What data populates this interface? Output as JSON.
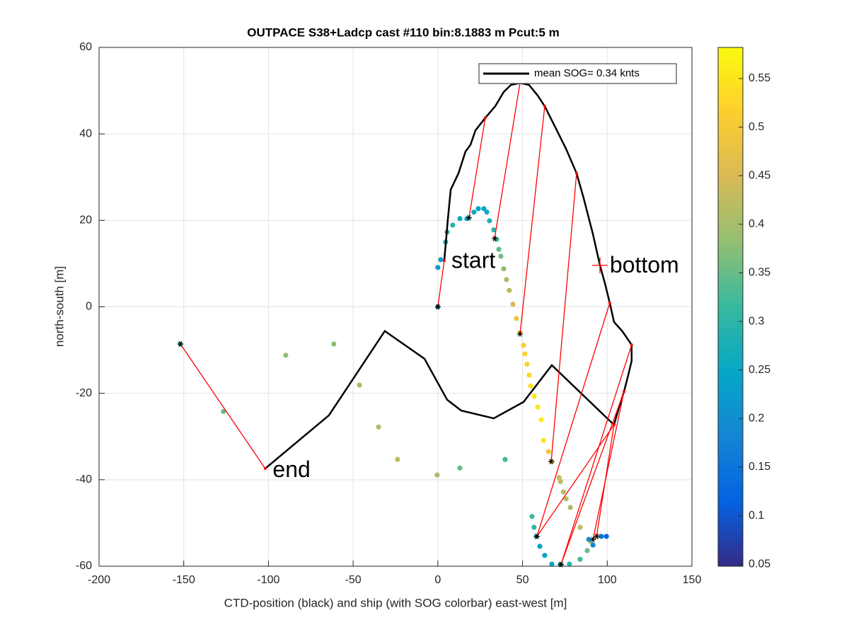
{
  "chart_data": {
    "type": "scatter",
    "title": "OUTPACE S38+Ladcp cast #110 bin:8.1883 m  Pcut:5 m",
    "xlabel": "CTD-position (black) and ship (with SOG colorbar) east-west [m]",
    "ylabel": "north-south [m]",
    "xlim": [
      -200,
      150
    ],
    "ylim": [
      -60,
      60
    ],
    "xticks": [
      -200,
      -150,
      -100,
      -50,
      0,
      50,
      100,
      150
    ],
    "yticks": [
      -60,
      -40,
      -20,
      0,
      20,
      40,
      60
    ],
    "grid": true,
    "legend_position": "northeast",
    "colormap": "parula",
    "clim": [
      0.048,
      0.582
    ],
    "cticks": [
      0.05,
      0.1,
      0.15,
      0.2,
      0.25,
      0.3,
      0.35,
      0.4,
      0.45,
      0.5,
      0.55
    ],
    "series": [
      {
        "name": "mean SOG=  0.34 knts",
        "color": "#000000",
        "x": [
          3.8,
          5.9,
          7.6,
          12.2,
          16.3,
          19.3,
          22.2,
          28.0,
          33.9,
          38.9,
          43.1,
          48.5,
          53.9,
          58.9,
          63.1,
          69.4,
          75.6,
          81.9,
          86.1,
          91.5,
          95.7,
          98.6,
          101.5,
          104.0,
          109.0,
          114.4,
          114.4,
          112.4,
          109.9,
          107.0,
          104.0,
          67.3,
          50.6,
          33.0,
          13.8,
          5.5,
          -7.9,
          -31.3,
          -64.3,
          -101.9
        ],
        "values": [
          10.7,
          20.2,
          27.1,
          30.9,
          35.9,
          37.5,
          40.8,
          43.7,
          46.4,
          49.7,
          51.3,
          51.8,
          51.3,
          48.9,
          46.4,
          41.5,
          36.6,
          30.9,
          25.1,
          16.9,
          9.6,
          5.5,
          0.9,
          -3.5,
          -5.7,
          -8.8,
          -12.5,
          -15.8,
          -19.6,
          -23.2,
          -27.3,
          -13.5,
          -22.0,
          -25.8,
          -24.0,
          -21.5,
          -12.0,
          -5.6,
          -25.1,
          -37.4
        ]
      }
    ],
    "ship": {
      "x": [
        0,
        0.0,
        1.7,
        4.6,
        5.5,
        8.8,
        13.0,
        17.2,
        21.3,
        23.9,
        27.2,
        28.9,
        30.5,
        33.0,
        34.7,
        36.0,
        37.2,
        38.9,
        40.5,
        42.2,
        44.3,
        46.4,
        48.5,
        50.6,
        51.4,
        52.7,
        53.9,
        54.8,
        56.9,
        59.0,
        61.1,
        62.4,
        65.3,
        67.4,
        71.6,
        72.4,
        74.1,
        75.7,
        78.2,
        55.6,
        56.8,
        58.1,
        60.2,
        63.1,
        67.3,
        72.3,
        77.7,
        84.0,
        88.2,
        90.3,
        94.5,
        84.0,
        89.1,
        91.6,
        96.5,
        99.5,
        -152.0,
        -126.5,
        -89.8,
        -61.4,
        -46.3,
        -35.0,
        -23.8,
        -0.4,
        13.0,
        39.7
      ],
      "y": [
        0,
        9.1,
        10.9,
        15.0,
        17.3,
        18.9,
        20.4,
        20.4,
        21.9,
        22.7,
        22.7,
        21.9,
        19.9,
        17.8,
        15.6,
        13.3,
        11.7,
        8.8,
        6.3,
        3.8,
        0.6,
        -2.7,
        -6.0,
        -8.9,
        -10.9,
        -13.3,
        -15.8,
        -18.3,
        -20.7,
        -23.2,
        -26.1,
        -30.9,
        -33.5,
        -35.8,
        -39.5,
        -40.4,
        -42.8,
        -44.4,
        -46.4,
        -48.5,
        -51.0,
        -53.1,
        -55.4,
        -57.5,
        -59.5,
        -59.6,
        -59.5,
        -58.4,
        -56.4,
        -54.3,
        -53.1,
        -51.0,
        -53.8,
        -55.1,
        -53.1,
        -53.1,
        -8.6,
        -24.2,
        -11.2,
        -8.6,
        -18.1,
        -27.8,
        -35.3,
        -38.9,
        -37.3,
        -35.3
      ],
      "sog": [
        0.25,
        0.22,
        0.22,
        0.28,
        0.3,
        0.3,
        0.26,
        0.25,
        0.26,
        0.25,
        0.25,
        0.26,
        0.28,
        0.3,
        0.32,
        0.34,
        0.36,
        0.38,
        0.4,
        0.42,
        0.45,
        0.48,
        0.5,
        0.51,
        0.52,
        0.52,
        0.53,
        0.54,
        0.55,
        0.55,
        0.56,
        0.55,
        0.5,
        0.47,
        0.44,
        0.42,
        0.42,
        0.41,
        0.4,
        0.32,
        0.3,
        0.28,
        0.25,
        0.25,
        0.25,
        0.27,
        0.3,
        0.32,
        0.35,
        0.4,
        0.42,
        0.42,
        0.2,
        0.18,
        0.15,
        0.12,
        0.3,
        0.35,
        0.38,
        0.38,
        0.4,
        0.42,
        0.42,
        0.4,
        0.35,
        0.32
      ]
    },
    "links": {
      "x0": [
        0,
        18.4,
        33.5,
        48.5,
        66.9,
        58.5,
        72.7,
        91.6,
        93.7,
        -152.0,
        58.5,
        72.7
      ],
      "y0": [
        0,
        20.6,
        15.8,
        -6.3,
        -35.8,
        -53.1,
        -59.6,
        -53.8,
        -53.1,
        -8.6,
        -53.1,
        -59.6
      ],
      "x1": [
        3.8,
        28.0,
        48.5,
        63.1,
        81.9,
        101.5,
        114.4,
        109.9,
        104.0,
        -101.9,
        104.0,
        109.9
      ],
      "y1": [
        10.7,
        43.7,
        51.8,
        46.4,
        30.9,
        0.9,
        -8.8,
        -19.6,
        -27.3,
        -37.4,
        -27.3,
        -19.6
      ]
    },
    "annotations": [
      {
        "text": "start",
        "x": 8.0,
        "y": 10.4
      },
      {
        "text": "end",
        "x": -97.5,
        "y": -38.0
      },
      {
        "text": "bottom",
        "x": 101.5,
        "y": 9.3
      }
    ],
    "bottom_marker": {
      "x": 95.7,
      "y": 9.6
    }
  }
}
